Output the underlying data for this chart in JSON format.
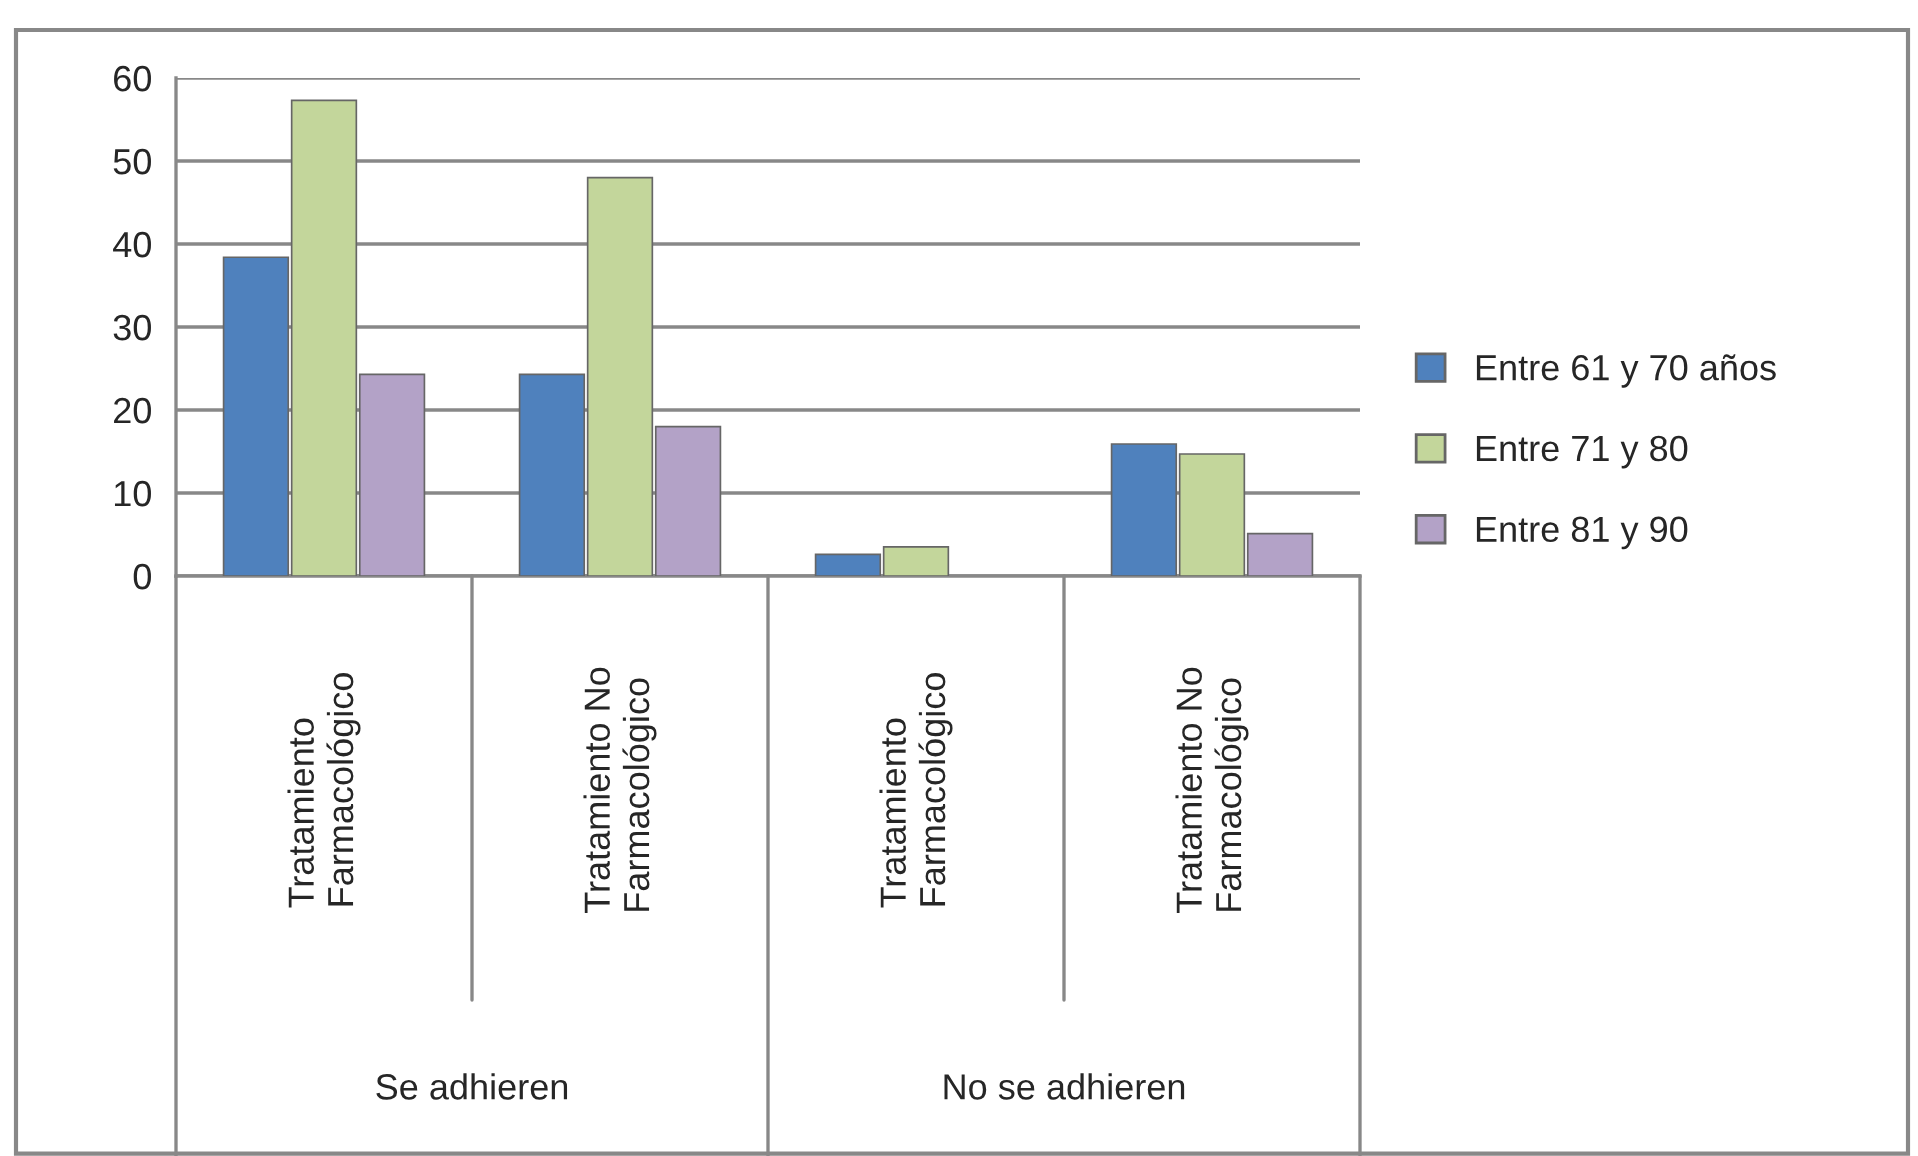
{
  "chart_data": {
    "type": "bar",
    "categories": [
      "Tratamiento Farmacológico",
      "Tratamiento No Farmacológico",
      "Tratamiento Farmacológico",
      "Tratamiento No Farmacológico"
    ],
    "series": [
      {
        "name": "Entre 61 y 70 años",
        "color": "#4f81bd",
        "values": [
          38.4,
          24.3,
          2.6,
          15.9
        ]
      },
      {
        "name": "Entre 71 y 80",
        "color": "#c3d69b",
        "values": [
          57.3,
          48,
          3.5,
          14.7
        ]
      },
      {
        "name": "Entre 81 y 90",
        "color": "#b3a2c7",
        "values": [
          24.3,
          18,
          null,
          5.1
        ]
      }
    ],
    "annotations": [
      "Se adhieren",
      "No se adhieren"
    ],
    "ylim": [
      0,
      60
    ],
    "yticks": [
      0,
      10,
      20,
      30,
      40,
      50,
      60
    ],
    "grid": "y",
    "legend": "right"
  }
}
